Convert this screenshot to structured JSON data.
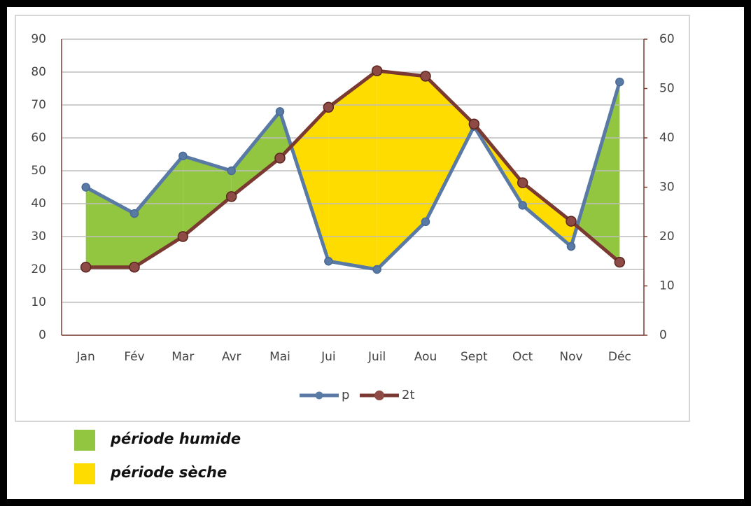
{
  "chart_data": {
    "type": "line",
    "categories": [
      "Jan",
      "Fév",
      "Mar",
      "Avr",
      "Mai",
      "Jui",
      "Juil",
      "Aou",
      "Sept",
      "Oct",
      "Nov",
      "Déc"
    ],
    "series": [
      {
        "name": "p",
        "color": "#5a7aa6",
        "values": [
          45,
          37,
          54.5,
          50,
          68,
          22.5,
          20,
          34.5,
          63.5,
          39.5,
          27,
          77
        ]
      },
      {
        "name": "2t",
        "color": "#7a3a32",
        "axis": "y2",
        "values": [
          13.8,
          13.8,
          20,
          28.1,
          35.9,
          46.2,
          53.6,
          52.5,
          42.8,
          30.9,
          23.1,
          14.8
        ]
      }
    ],
    "ylim": [
      0,
      90
    ],
    "yticks": [
      0,
      10,
      20,
      30,
      40,
      50,
      60,
      70,
      80,
      90
    ],
    "y2lim": [
      0,
      60
    ],
    "y2ticks": [
      0,
      10,
      20,
      30,
      40,
      50,
      60
    ],
    "grid": true,
    "legend": "bottom",
    "fill_legend": [
      {
        "label": "période humide",
        "color": "#92c640"
      },
      {
        "label": "période sèche",
        "color": "#ffdc00"
      }
    ]
  }
}
